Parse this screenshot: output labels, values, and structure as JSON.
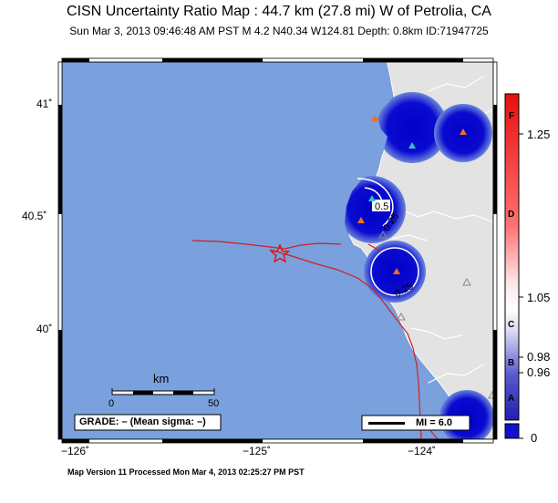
{
  "header": {
    "title": "CISN Uncertainty Ratio Map : 44.7 km (27.8 mi) W of Petrolia, CA",
    "subtitle": "Sun Mar  3, 2013 09:46:48 AM PST   M 4.2   N40.34 W124.81   Depth: 0.8km   ID:71947725"
  },
  "map": {
    "lat_labels": [
      "41˚",
      "40.5˚",
      "40˚"
    ],
    "lon_labels": [
      "−126˚",
      "−125˚",
      "−124˚"
    ],
    "epicenter": {
      "lat": 40.34,
      "lon": -124.81
    },
    "contour_labels": [
      "0.5",
      "0.25",
      "0.25"
    ],
    "scale_bar": {
      "unit": "km",
      "min_label": "0",
      "max_label": "50"
    },
    "grade_text": "GRADE: – (Mean sigma: –)",
    "mi_legend": "MI = 6.0",
    "colors": {
      "ocean": "#7aa0dd",
      "land": "#e3e3e3",
      "station_blue": "#1010d0",
      "fault": "#d02020",
      "station_orange": "#f07020",
      "station_cyan": "#30c0c0"
    }
  },
  "colorbar": {
    "ticks": [
      "1.25",
      "1.05",
      "0.98",
      "0.96",
      "0"
    ],
    "letters": [
      "F",
      "D",
      "C",
      "B",
      "A"
    ],
    "colors": {
      "top": "#e81010",
      "mid": "#ffffff",
      "low": "#2020b0",
      "bottom": "#1010d0"
    }
  },
  "footer": {
    "text": "Map Version 11 Processed Mon Mar  4, 2013 02:25:27 PM PST"
  }
}
